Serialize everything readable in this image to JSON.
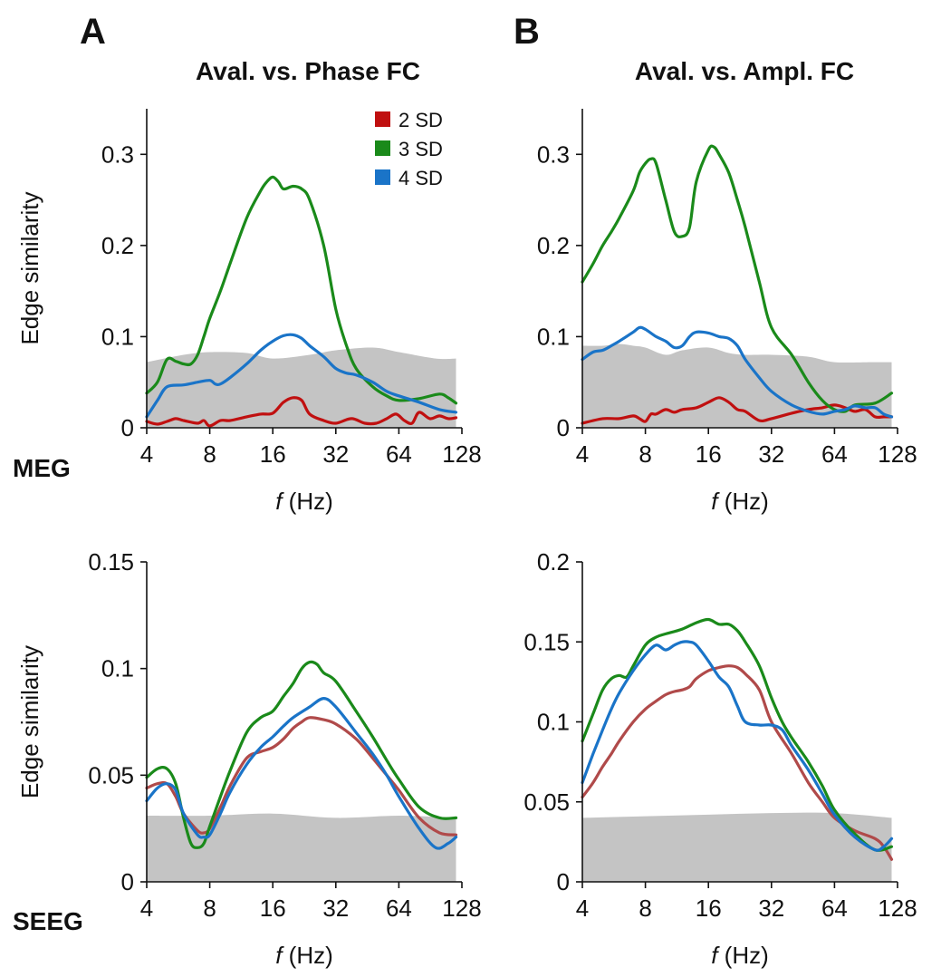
{
  "panel_letters": [
    "A",
    "B"
  ],
  "column_titles": [
    "Aval. vs. Phase FC",
    "Aval. vs. Ampl. FC"
  ],
  "row_labels": [
    "MEG",
    "SEEG"
  ],
  "colors": {
    "2 SD": "#c01010",
    "3 SD": "#1a8a1a",
    "4 SD": "#1a74c8",
    "null_band": "#c4c4c4",
    "2 SD_seeg": "#b04a4a"
  },
  "legend": [
    {
      "label": "2 SD",
      "color": "#c01010"
    },
    {
      "label": "3 SD",
      "color": "#1a8a1a"
    },
    {
      "label": "4 SD",
      "color": "#1a74c8"
    }
  ],
  "chart_data": [
    {
      "type": "line",
      "panel": "A-MEG",
      "xlabel_italic": "f",
      "xlabel": " (Hz)",
      "ylabel": "Edge similarity",
      "x_scale": "log2",
      "xlim": [
        4,
        128
      ],
      "ylim": [
        0,
        0.35
      ],
      "xticks": [
        4,
        8,
        16,
        32,
        64,
        128
      ],
      "yticks": [
        0,
        0.1,
        0.2,
        0.3
      ],
      "ytick_labels": [
        "0",
        "0.1",
        "0.2",
        "0.3"
      ],
      "null_band_upper": {
        "x": [
          4,
          6,
          8,
          12,
          16,
          24,
          32,
          48,
          64,
          96,
          120
        ],
        "y": [
          0.072,
          0.08,
          0.083,
          0.082,
          0.076,
          0.08,
          0.085,
          0.088,
          0.083,
          0.076,
          0.076
        ]
      },
      "series": [
        {
          "name": "2 SD",
          "x": [
            4,
            4.5,
            5,
            5.5,
            6,
            7,
            7.5,
            8,
            9,
            10,
            12,
            14,
            16,
            18,
            20,
            22,
            24,
            28,
            32,
            38,
            44,
            50,
            56,
            62,
            68,
            74,
            80,
            90,
            100,
            110,
            120
          ],
          "values": [
            0.007,
            0.004,
            0.007,
            0.01,
            0.008,
            0.005,
            0.008,
            0.002,
            0.008,
            0.008,
            0.012,
            0.015,
            0.016,
            0.028,
            0.033,
            0.03,
            0.015,
            0.008,
            0.005,
            0.01,
            0.005,
            0.005,
            0.01,
            0.015,
            0.008,
            0.005,
            0.017,
            0.01,
            0.013,
            0.01,
            0.011
          ]
        },
        {
          "name": "3 SD",
          "x": [
            4,
            4.5,
            5,
            5.5,
            6,
            6.5,
            7,
            7.5,
            8,
            9,
            10,
            12,
            14,
            15,
            16,
            17,
            18,
            20,
            22,
            24,
            28,
            32,
            36,
            40,
            48,
            56,
            64,
            80,
            100,
            110,
            120
          ],
          "values": [
            0.038,
            0.05,
            0.075,
            0.073,
            0.07,
            0.07,
            0.08,
            0.1,
            0.12,
            0.15,
            0.18,
            0.23,
            0.26,
            0.27,
            0.275,
            0.27,
            0.262,
            0.265,
            0.262,
            0.25,
            0.2,
            0.13,
            0.09,
            0.065,
            0.045,
            0.035,
            0.03,
            0.032,
            0.037,
            0.033,
            0.027
          ]
        },
        {
          "name": "4 SD",
          "x": [
            4,
            4.5,
            5,
            6,
            7,
            8,
            8.5,
            9,
            10,
            12,
            14,
            16,
            18,
            20,
            22,
            24,
            28,
            32,
            36,
            40,
            48,
            56,
            64,
            80,
            100,
            120
          ],
          "values": [
            0.012,
            0.03,
            0.045,
            0.047,
            0.05,
            0.052,
            0.048,
            0.048,
            0.055,
            0.07,
            0.085,
            0.095,
            0.101,
            0.102,
            0.098,
            0.09,
            0.078,
            0.065,
            0.06,
            0.058,
            0.05,
            0.04,
            0.035,
            0.028,
            0.02,
            0.017
          ]
        }
      ]
    },
    {
      "type": "line",
      "panel": "B-MEG",
      "xlabel_italic": "f",
      "xlabel": " (Hz)",
      "ylabel": "",
      "x_scale": "log2",
      "xlim": [
        4,
        128
      ],
      "ylim": [
        0,
        0.35
      ],
      "xticks": [
        4,
        8,
        16,
        32,
        64,
        128
      ],
      "yticks": [
        0,
        0.1,
        0.2,
        0.3
      ],
      "ytick_labels": [
        "0",
        "0.1",
        "0.2",
        "0.3"
      ],
      "null_band_upper": {
        "x": [
          4,
          5,
          6,
          7,
          8,
          10,
          12,
          16,
          20,
          24,
          32,
          48,
          64,
          96,
          120
        ],
        "y": [
          0.09,
          0.09,
          0.092,
          0.09,
          0.088,
          0.08,
          0.085,
          0.088,
          0.082,
          0.08,
          0.08,
          0.078,
          0.072,
          0.072,
          0.072
        ]
      },
      "series": [
        {
          "name": "2 SD",
          "x": [
            4,
            5,
            6,
            7,
            7.5,
            8,
            8.5,
            9,
            10,
            11,
            12,
            14,
            16,
            18,
            20,
            22,
            24,
            28,
            32,
            40,
            48,
            56,
            64,
            72,
            80,
            90,
            100,
            110,
            120
          ],
          "values": [
            0.005,
            0.01,
            0.01,
            0.013,
            0.01,
            0.007,
            0.015,
            0.015,
            0.02,
            0.017,
            0.02,
            0.022,
            0.028,
            0.033,
            0.028,
            0.02,
            0.018,
            0.008,
            0.01,
            0.016,
            0.02,
            0.022,
            0.025,
            0.022,
            0.018,
            0.02,
            0.012,
            0.012,
            0.012
          ]
        },
        {
          "name": "3 SD",
          "x": [
            4,
            4.5,
            5,
            5.5,
            6,
            7,
            7.5,
            8,
            8.5,
            9,
            10,
            11,
            12,
            13,
            14,
            16,
            17,
            18,
            20,
            22,
            24,
            28,
            32,
            40,
            48,
            56,
            64,
            72,
            80,
            100,
            120
          ],
          "values": [
            0.16,
            0.18,
            0.2,
            0.215,
            0.23,
            0.26,
            0.28,
            0.29,
            0.295,
            0.29,
            0.25,
            0.215,
            0.21,
            0.22,
            0.27,
            0.305,
            0.308,
            0.3,
            0.28,
            0.25,
            0.22,
            0.16,
            0.11,
            0.08,
            0.05,
            0.03,
            0.02,
            0.018,
            0.025,
            0.027,
            0.038
          ]
        },
        {
          "name": "4 SD",
          "x": [
            4,
            4.5,
            5,
            5.5,
            6,
            7,
            7.5,
            8,
            9,
            10,
            11,
            12,
            13,
            14,
            16,
            18,
            20,
            22,
            24,
            28,
            32,
            40,
            48,
            56,
            64,
            72,
            80,
            90,
            100,
            110,
            120
          ],
          "values": [
            0.075,
            0.083,
            0.085,
            0.09,
            0.095,
            0.105,
            0.11,
            0.108,
            0.1,
            0.095,
            0.088,
            0.09,
            0.1,
            0.105,
            0.104,
            0.1,
            0.098,
            0.09,
            0.075,
            0.055,
            0.04,
            0.025,
            0.018,
            0.015,
            0.018,
            0.02,
            0.024,
            0.022,
            0.022,
            0.015,
            0.012
          ]
        }
      ]
    },
    {
      "type": "line",
      "panel": "A-SEEG",
      "xlabel_italic": "f",
      "xlabel": " (Hz)",
      "ylabel": "Edge similarity",
      "x_scale": "log2",
      "xlim": [
        4,
        128
      ],
      "ylim": [
        0,
        0.15
      ],
      "xticks": [
        4,
        8,
        16,
        32,
        64,
        128
      ],
      "yticks": [
        0,
        0.05,
        0.1,
        0.15
      ],
      "ytick_labels": [
        "0",
        "0.05",
        "0.1",
        "0.15"
      ],
      "null_band_upper": {
        "x": [
          4,
          8,
          16,
          32,
          64,
          120
        ],
        "y": [
          0.031,
          0.031,
          0.032,
          0.03,
          0.031,
          0.03
        ]
      },
      "series": [
        {
          "name": "2 SD",
          "x": [
            4,
            4.5,
            5,
            5.5,
            6,
            7,
            7.5,
            8,
            9,
            10,
            12,
            14,
            16,
            18,
            20,
            22,
            24,
            28,
            32,
            40,
            48,
            56,
            64,
            80,
            100,
            120
          ],
          "values": [
            0.044,
            0.046,
            0.046,
            0.04,
            0.032,
            0.024,
            0.023,
            0.025,
            0.035,
            0.045,
            0.058,
            0.061,
            0.063,
            0.067,
            0.072,
            0.075,
            0.077,
            0.076,
            0.074,
            0.067,
            0.058,
            0.05,
            0.043,
            0.03,
            0.023,
            0.022
          ]
        },
        {
          "name": "3 SD",
          "x": [
            4,
            4.5,
            5,
            5.5,
            6,
            6.5,
            7,
            7.5,
            8,
            9,
            10,
            12,
            14,
            16,
            18,
            20,
            22,
            24,
            26,
            28,
            32,
            40,
            48,
            56,
            64,
            80,
            100,
            120
          ],
          "values": [
            0.049,
            0.053,
            0.053,
            0.046,
            0.03,
            0.018,
            0.016,
            0.018,
            0.026,
            0.04,
            0.052,
            0.07,
            0.077,
            0.08,
            0.087,
            0.093,
            0.1,
            0.103,
            0.102,
            0.098,
            0.094,
            0.08,
            0.068,
            0.057,
            0.048,
            0.035,
            0.03,
            0.03
          ]
        },
        {
          "name": "4 SD",
          "x": [
            4,
            4.5,
            5,
            5.5,
            6,
            7,
            7.5,
            8,
            9,
            10,
            12,
            14,
            16,
            18,
            20,
            24,
            28,
            32,
            40,
            48,
            56,
            64,
            80,
            96,
            110,
            120
          ],
          "values": [
            0.038,
            0.044,
            0.046,
            0.043,
            0.032,
            0.022,
            0.021,
            0.022,
            0.032,
            0.042,
            0.055,
            0.063,
            0.068,
            0.073,
            0.077,
            0.082,
            0.086,
            0.082,
            0.07,
            0.06,
            0.05,
            0.04,
            0.025,
            0.016,
            0.018,
            0.021
          ]
        }
      ]
    },
    {
      "type": "line",
      "panel": "B-SEEG",
      "xlabel_italic": "f",
      "xlabel": " (Hz)",
      "ylabel": "",
      "x_scale": "log2",
      "xlim": [
        4,
        128
      ],
      "ylim": [
        0,
        0.2
      ],
      "xticks": [
        4,
        8,
        16,
        32,
        64,
        128
      ],
      "yticks": [
        0,
        0.05,
        0.1,
        0.15,
        0.2
      ],
      "ytick_labels": [
        "0",
        "0.05",
        "0.1",
        "0.15",
        "0.2"
      ],
      "null_band_upper": {
        "x": [
          4,
          8,
          16,
          32,
          64,
          120
        ],
        "y": [
          0.04,
          0.041,
          0.042,
          0.043,
          0.043,
          0.04
        ]
      },
      "series": [
        {
          "name": "2 SD",
          "x": [
            4,
            4.5,
            5,
            5.5,
            6,
            7,
            8,
            9,
            10,
            11,
            12,
            13,
            14,
            16,
            18,
            20,
            22,
            24,
            28,
            32,
            40,
            48,
            56,
            64,
            80,
            100,
            110,
            120
          ],
          "values": [
            0.053,
            0.062,
            0.072,
            0.08,
            0.088,
            0.1,
            0.108,
            0.113,
            0.117,
            0.119,
            0.12,
            0.122,
            0.127,
            0.132,
            0.134,
            0.135,
            0.134,
            0.13,
            0.12,
            0.1,
            0.08,
            0.062,
            0.05,
            0.04,
            0.032,
            0.027,
            0.022,
            0.014
          ]
        },
        {
          "name": "3 SD",
          "x": [
            4,
            4.5,
            5,
            5.5,
            6,
            6.5,
            7,
            8,
            9,
            10,
            12,
            14,
            16,
            18,
            20,
            22,
            24,
            28,
            32,
            36,
            40,
            48,
            56,
            64,
            80,
            100,
            120
          ],
          "values": [
            0.088,
            0.105,
            0.12,
            0.127,
            0.129,
            0.128,
            0.135,
            0.148,
            0.153,
            0.155,
            0.158,
            0.162,
            0.164,
            0.161,
            0.161,
            0.157,
            0.15,
            0.135,
            0.115,
            0.1,
            0.09,
            0.075,
            0.06,
            0.045,
            0.03,
            0.02,
            0.022
          ]
        },
        {
          "name": "4 SD",
          "x": [
            4,
            4.5,
            5,
            5.5,
            6,
            7,
            8,
            9,
            10,
            11,
            12,
            13,
            14,
            16,
            18,
            20,
            22,
            24,
            28,
            32,
            36,
            40,
            48,
            56,
            64,
            80,
            100,
            110,
            120
          ],
          "values": [
            0.062,
            0.08,
            0.095,
            0.108,
            0.118,
            0.132,
            0.142,
            0.148,
            0.145,
            0.148,
            0.15,
            0.15,
            0.148,
            0.138,
            0.128,
            0.122,
            0.11,
            0.1,
            0.098,
            0.098,
            0.095,
            0.085,
            0.07,
            0.055,
            0.042,
            0.028,
            0.02,
            0.022,
            0.027
          ]
        }
      ]
    }
  ]
}
